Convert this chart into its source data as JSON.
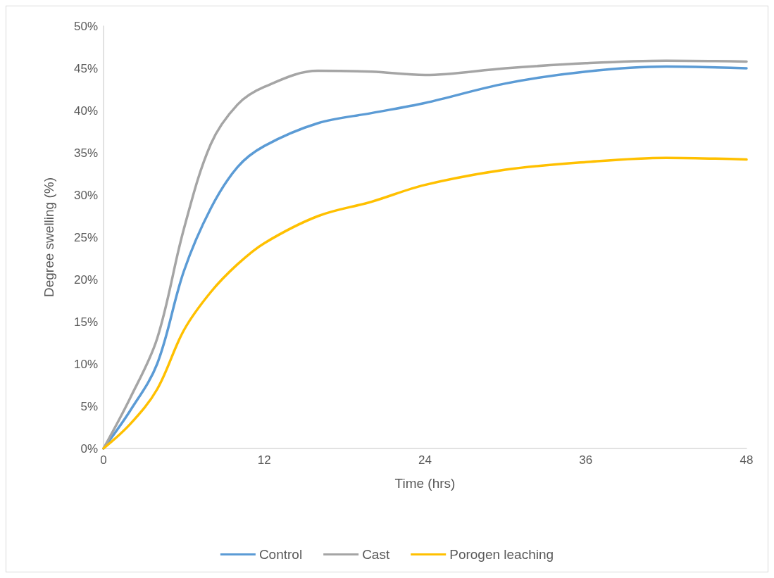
{
  "chart_data": {
    "type": "line",
    "xlabel": "Time (hrs)",
    "ylabel": "Degree swelling (%)",
    "x": [
      0,
      2,
      4,
      6,
      8,
      10,
      12,
      16,
      20,
      24,
      30,
      36,
      42,
      48
    ],
    "series": [
      {
        "name": "Control",
        "color": "#5b9bd5",
        "values": [
          0,
          4.5,
          10,
          21,
          28.4,
          33.3,
          35.8,
          38.5,
          39.7,
          40.9,
          43.2,
          44.6,
          45.2,
          45
        ]
      },
      {
        "name": "Cast",
        "color": "#a5a5a5",
        "values": [
          0,
          6,
          13,
          26,
          36,
          40.7,
          42.8,
          44.7,
          44.6,
          44.2,
          45,
          45.6,
          45.9,
          45.8
        ]
      },
      {
        "name": "Porogen leaching",
        "color": "#ffc000",
        "values": [
          0,
          2.9,
          7,
          14,
          18.5,
          21.8,
          24.3,
          27.5,
          29.2,
          31.2,
          33,
          33.9,
          34.4,
          34.2
        ]
      }
    ],
    "xlim": [
      0,
      48
    ],
    "xticks": [
      0,
      12,
      24,
      36,
      48
    ],
    "ylim": [
      0,
      50
    ],
    "yticks": [
      {
        "value": 0,
        "label": "0%"
      },
      {
        "value": 5,
        "label": "5%"
      },
      {
        "value": 10,
        "label": "10%"
      },
      {
        "value": 15,
        "label": "15%"
      },
      {
        "value": 20,
        "label": "20%"
      },
      {
        "value": 25,
        "label": "25%"
      },
      {
        "value": 30,
        "label": "30%"
      },
      {
        "value": 35,
        "label": "35%"
      },
      {
        "value": 40,
        "label": "40%"
      },
      {
        "value": 45,
        "label": "45%"
      },
      {
        "value": 50,
        "label": "50%"
      }
    ],
    "grid": false,
    "legend": "bottom",
    "marker": "none",
    "line_style": "solid"
  }
}
